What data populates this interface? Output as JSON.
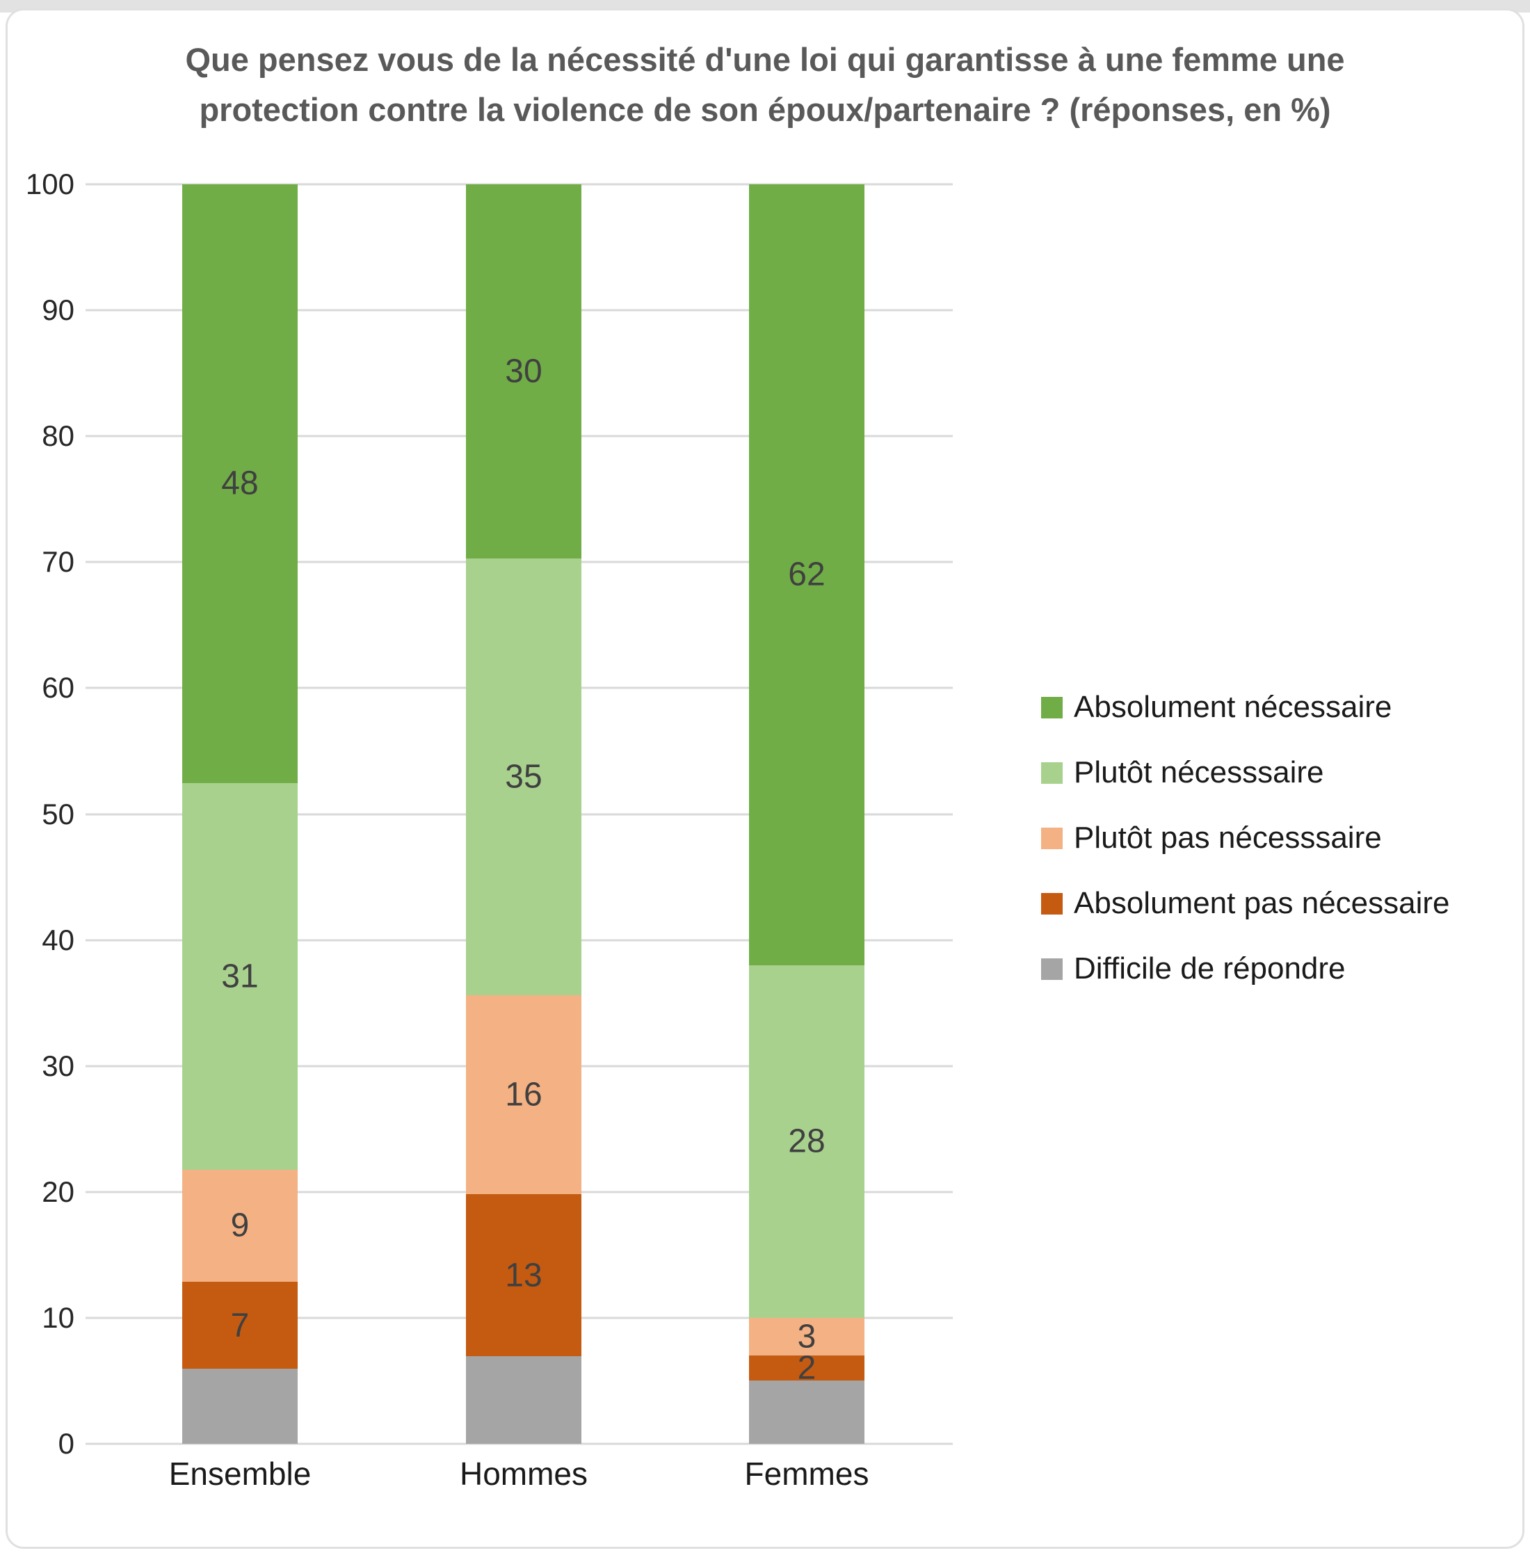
{
  "header": {
    "title_line1": "Que pensez vous de la nécessité d'une loi qui garantisse à une femme une",
    "title_line2": "protection contre la violence de son époux/partenaire ? (réponses, en %)"
  },
  "chart_data": {
    "type": "bar",
    "stacked": true,
    "units": "%",
    "title": "Que pensez vous de la nécessité d'une loi qui garantisse à une femme une protection contre la violence de son époux/partenaire ? (réponses, en %)",
    "categories": [
      "Ensemble",
      "Hommes",
      "Femmes"
    ],
    "series": [
      {
        "name": "Absolument nécessaire",
        "color": "#70AD47",
        "values": [
          48,
          30,
          62
        ],
        "labels_shown": true
      },
      {
        "name": "Plutôt nécesssaire",
        "color": "#A9D18E",
        "values": [
          31,
          35,
          28
        ],
        "labels_shown": true
      },
      {
        "name": "Plutôt pas nécesssaire",
        "color": "#F4B183",
        "values": [
          9,
          16,
          3
        ],
        "labels_shown": true
      },
      {
        "name": "Absolument pas nécessaire",
        "color": "#C55A11",
        "values": [
          7,
          13,
          2
        ],
        "labels_shown": true
      },
      {
        "name": "Difficile de répondre",
        "color": "#A5A5A5",
        "values": [
          6,
          7,
          5
        ],
        "labels_shown": false,
        "values_estimated_from_bar_heights": true
      }
    ],
    "xlabel": "",
    "ylabel": "",
    "ylim": [
      0,
      100
    ],
    "yticks": [
      0,
      10,
      20,
      30,
      40,
      50,
      60,
      70,
      80,
      90,
      100
    ],
    "grid": "horizontal",
    "legend_position": "right",
    "gridline_color": "#d9d9d9",
    "title_color": "#595959",
    "data_label_color": "#404040",
    "axis_text_color": "#262626"
  }
}
